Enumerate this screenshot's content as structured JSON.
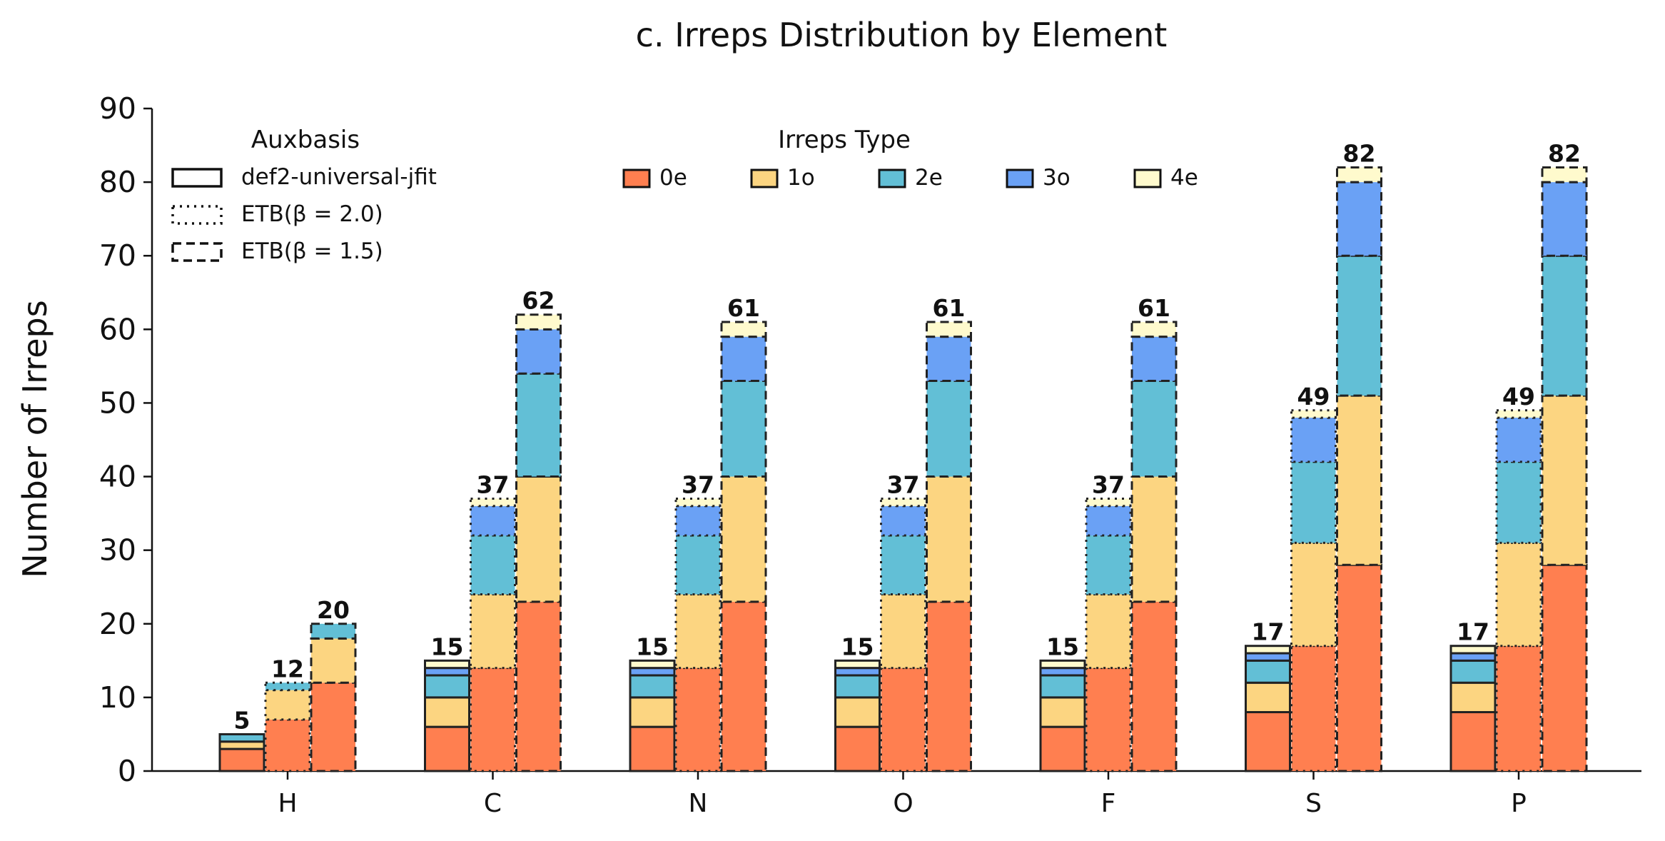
{
  "chart_data": {
    "type": "bar",
    "stacked": true,
    "grouped": true,
    "title": "c. Irreps Distribution by Element",
    "xlabel": "",
    "ylabel": "Number of Irreps",
    "ylim": [
      0,
      90
    ],
    "yticks": [
      0,
      10,
      20,
      30,
      40,
      50,
      60,
      70,
      80,
      90
    ],
    "grid": false,
    "categories": [
      "H",
      "C",
      "N",
      "O",
      "F",
      "S",
      "P"
    ],
    "irreps_types": [
      "0e",
      "1o",
      "2e",
      "3o",
      "4e"
    ],
    "colors": {
      "0e": "#ff7f50",
      "1o": "#fcd581",
      "2e": "#62bfd6",
      "3o": "#6aa1f5",
      "4e": "#fffacd",
      "edge": "#222222"
    },
    "groups": [
      {
        "name": "def2-universal-jfit",
        "linestyle": "solid",
        "values": {
          "0e": [
            3,
            6,
            6,
            6,
            6,
            8,
            8
          ],
          "1o": [
            1,
            4,
            4,
            4,
            4,
            4,
            4
          ],
          "2e": [
            1,
            3,
            3,
            3,
            3,
            3,
            3
          ],
          "3o": [
            0,
            1,
            1,
            1,
            1,
            1,
            1
          ],
          "4e": [
            0,
            1,
            1,
            1,
            1,
            1,
            1
          ]
        },
        "totals": [
          5,
          15,
          15,
          15,
          15,
          17,
          17
        ]
      },
      {
        "name": "ETB(β = 2.0)",
        "linestyle": "dotted",
        "values": {
          "0e": [
            7,
            14,
            14,
            14,
            14,
            17,
            17
          ],
          "1o": [
            4,
            10,
            10,
            10,
            10,
            14,
            14
          ],
          "2e": [
            1,
            8,
            8,
            8,
            8,
            11,
            11
          ],
          "3o": [
            0,
            4,
            4,
            4,
            4,
            6,
            6
          ],
          "4e": [
            0,
            1,
            1,
            1,
            1,
            1,
            1
          ]
        },
        "totals": [
          12,
          37,
          37,
          37,
          37,
          49,
          49
        ]
      },
      {
        "name": "ETB(β = 1.5)",
        "linestyle": "dashed",
        "values": {
          "0e": [
            12,
            23,
            23,
            23,
            23,
            28,
            28
          ],
          "1o": [
            6,
            17,
            17,
            17,
            17,
            23,
            23
          ],
          "2e": [
            2,
            14,
            13,
            13,
            13,
            19,
            19
          ],
          "3o": [
            0,
            6,
            6,
            6,
            6,
            10,
            10
          ],
          "4e": [
            0,
            2,
            2,
            2,
            2,
            2,
            2
          ]
        },
        "totals": [
          20,
          62,
          61,
          61,
          61,
          82,
          82
        ]
      }
    ],
    "legend_auxbasis": {
      "title": "Auxbasis",
      "placement": "top-left",
      "entries": [
        {
          "label": "def2-universal-jfit",
          "linestyle": "solid"
        },
        {
          "label": "ETB(β = 2.0)",
          "linestyle": "dotted"
        },
        {
          "label": "ETB(β = 1.5)",
          "linestyle": "dashed"
        }
      ]
    },
    "legend_irreps": {
      "title": "Irreps Type",
      "placement": "top-center",
      "entries": [
        "0e",
        "1o",
        "2e",
        "3o",
        "4e"
      ]
    }
  }
}
